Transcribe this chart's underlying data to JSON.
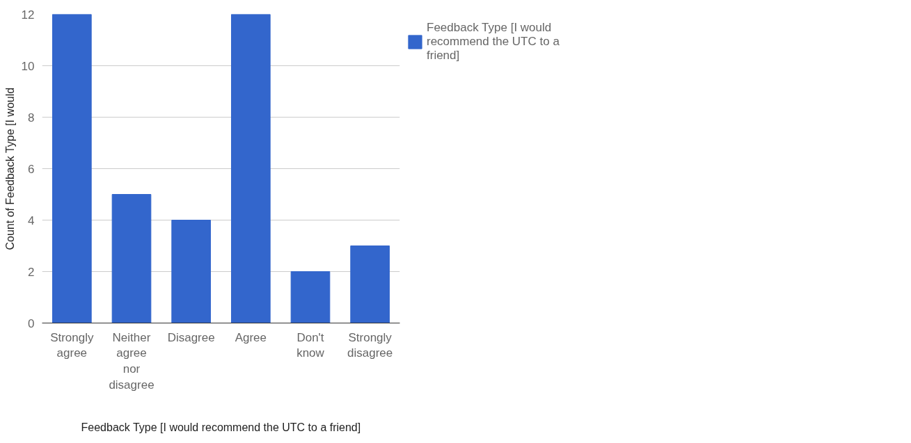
{
  "chart_data": {
    "type": "bar",
    "categories": [
      "Strongly agree",
      "Neither agree nor disagree",
      "Disagree",
      "Agree",
      "Don't know",
      "Strongly disagree"
    ],
    "series": [
      {
        "name": "Feedback Type [I would recommend the UTC to a friend]",
        "color": "#3366cc",
        "values": [
          12,
          5,
          4,
          12,
          2,
          3
        ]
      }
    ],
    "xlabel": "Feedback Type [I would recommend the UTC to a friend]",
    "ylabel": "Count of Feedback Type [I would",
    "ylim": [
      0,
      12
    ],
    "yticks": [
      0,
      2,
      4,
      6,
      8,
      10,
      12
    ],
    "grid": "y",
    "legend": "top right"
  }
}
